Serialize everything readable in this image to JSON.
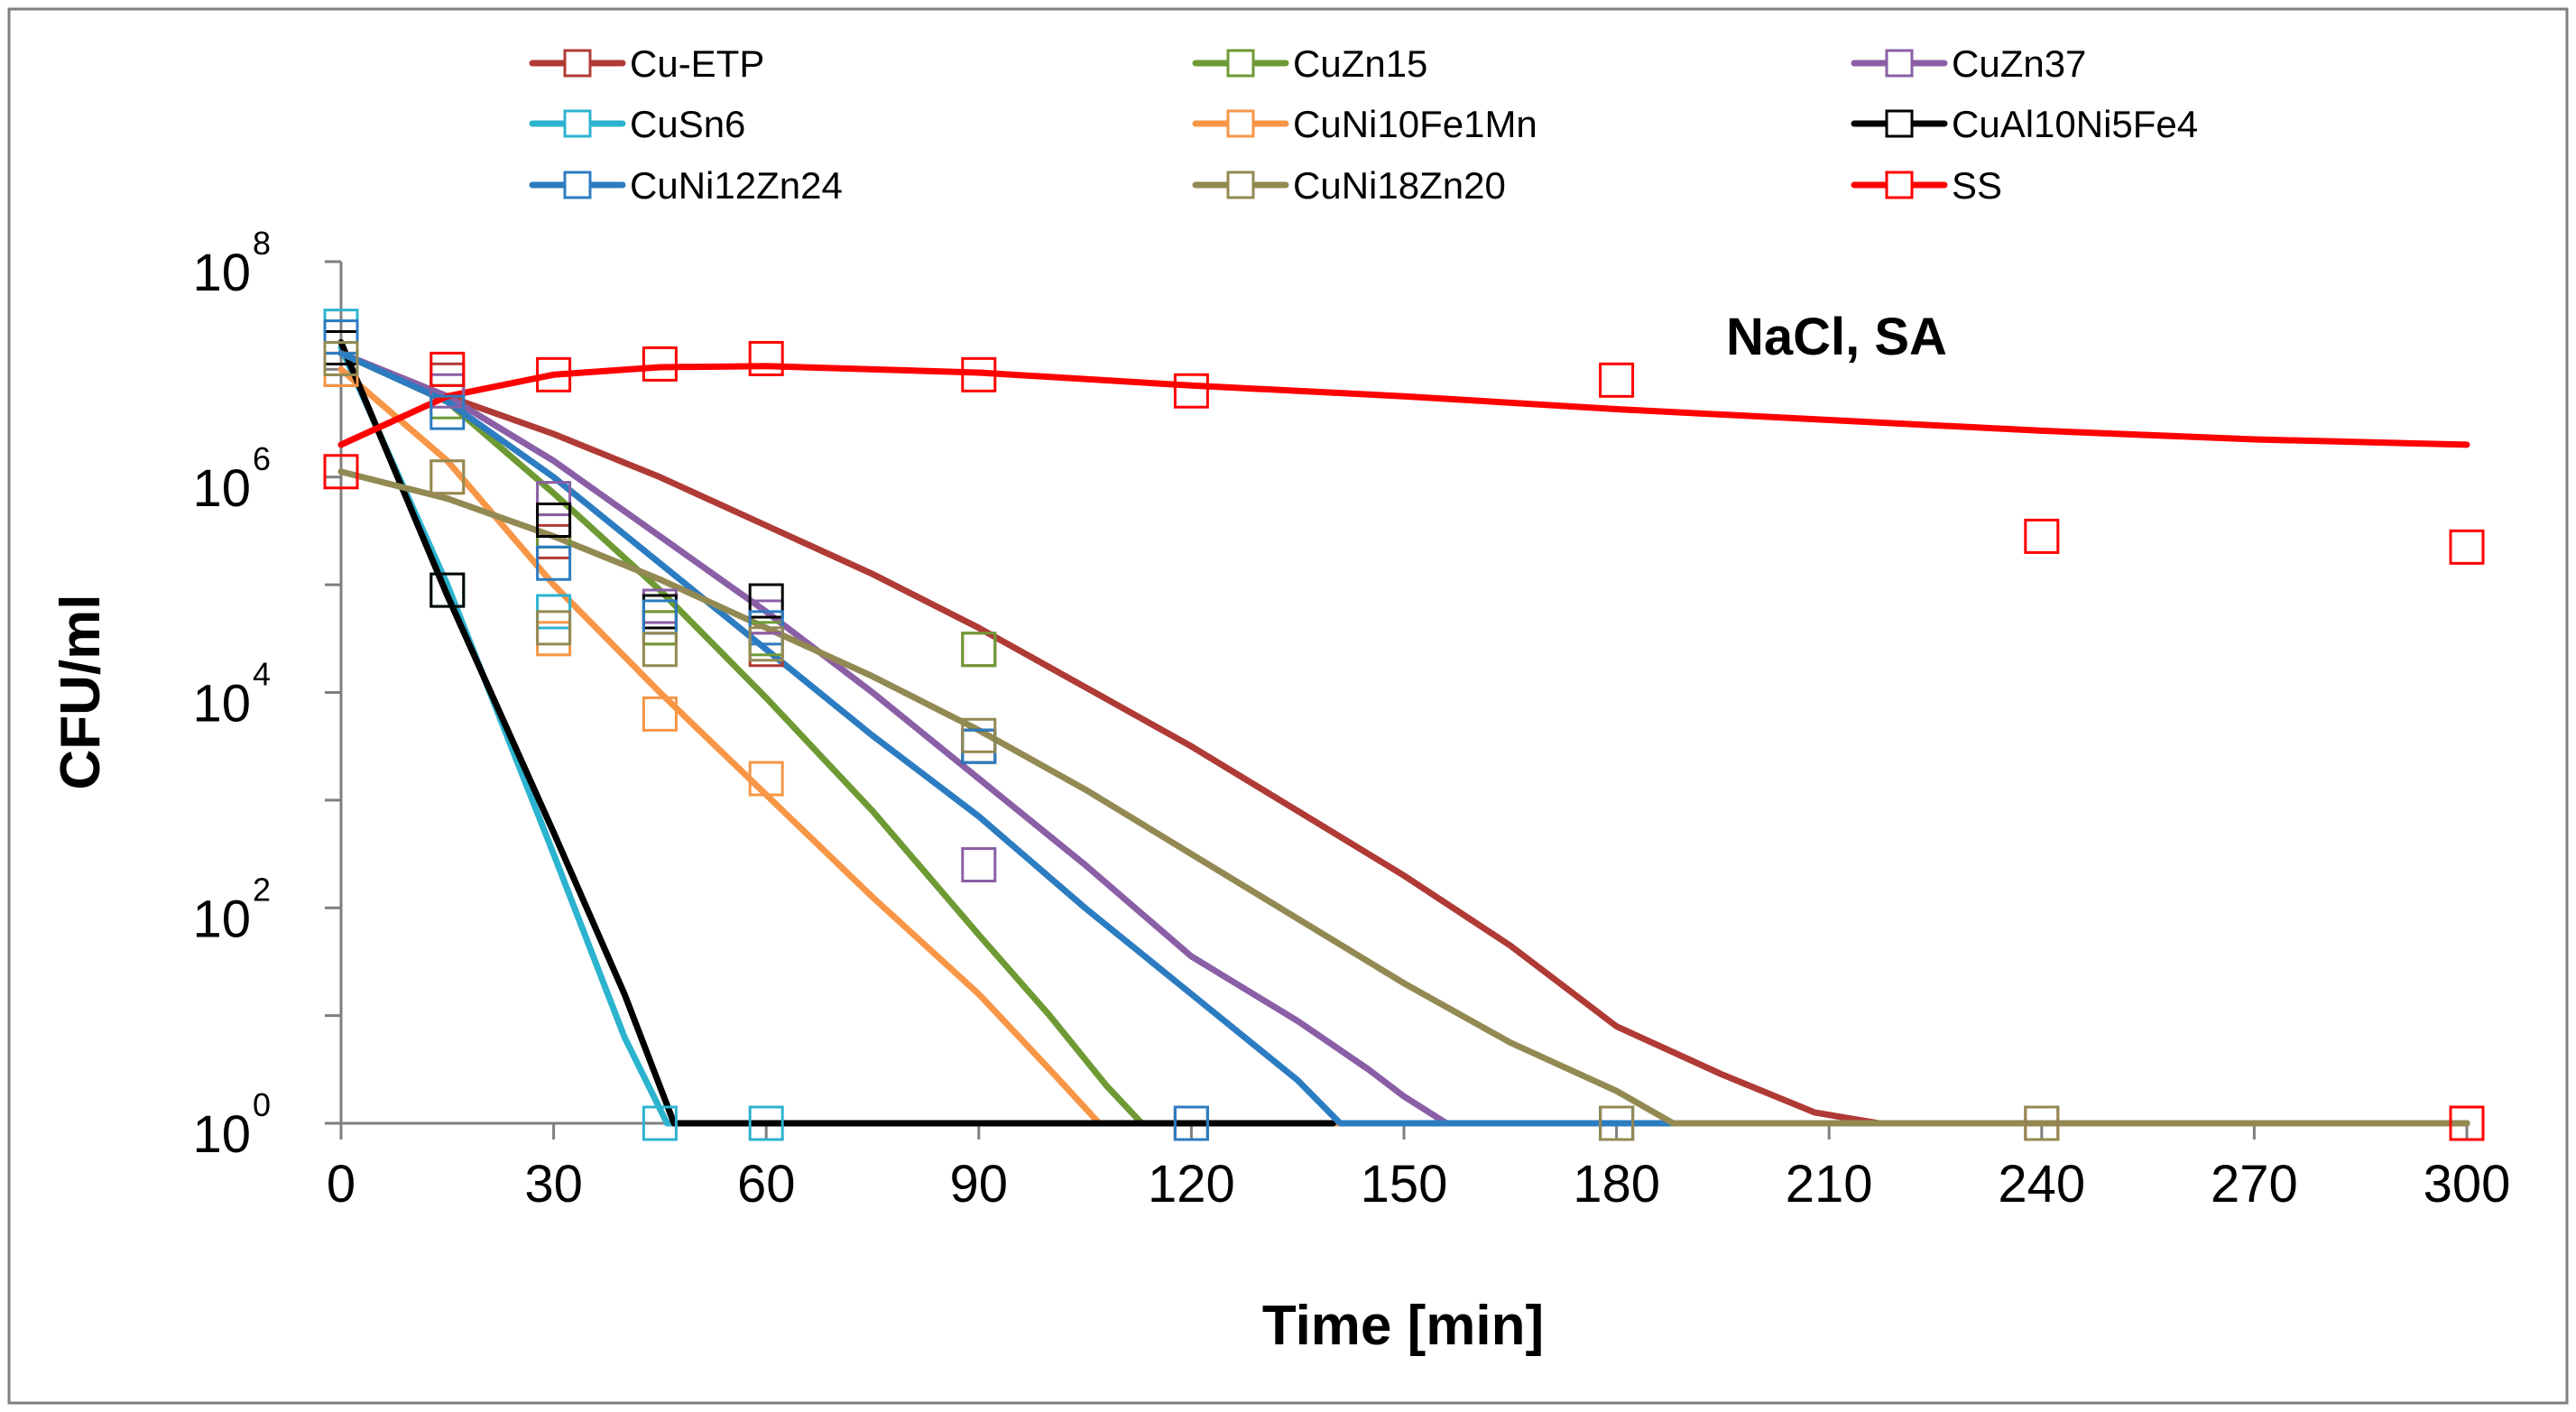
{
  "chart_data": {
    "type": "line",
    "annotation": "NaCl, SA",
    "xlabel": "Time [min]",
    "ylabel": "CFU/ml",
    "y_scale": "log",
    "xlim": [
      0,
      300
    ],
    "ylim_exponent": [
      0,
      8
    ],
    "x_ticks": [
      "0",
      "30",
      "60",
      "90",
      "120",
      "150",
      "180",
      "210",
      "240",
      "270",
      "300"
    ],
    "y_ticks": [
      {
        "base": "10",
        "exp": "0"
      },
      {
        "base": "10",
        "exp": "2"
      },
      {
        "base": "10",
        "exp": "4"
      },
      {
        "base": "10",
        "exp": "6"
      },
      {
        "base": "10",
        "exp": "8"
      }
    ],
    "legend_position": "top",
    "series": [
      {
        "name": "Cu-ETP",
        "color": "#b03a35",
        "fit_log10": [
          [
            0,
            7.15
          ],
          [
            15,
            6.75
          ],
          [
            30,
            6.4
          ],
          [
            45,
            6.0
          ],
          [
            60,
            5.55
          ],
          [
            75,
            5.1
          ],
          [
            90,
            4.6
          ],
          [
            105,
            4.05
          ],
          [
            120,
            3.5
          ],
          [
            135,
            2.9
          ],
          [
            150,
            2.3
          ],
          [
            165,
            1.65
          ],
          [
            180,
            0.9
          ],
          [
            195,
            0.45
          ],
          [
            208,
            0.1
          ],
          [
            217,
            0
          ],
          [
            300,
            0
          ]
        ],
        "points": [
          [
            0,
            7.0
          ],
          [
            15,
            6.9
          ],
          [
            30,
            5.4
          ],
          [
            45,
            4.6
          ],
          [
            60,
            4.4
          ],
          [
            90,
            4.4
          ],
          [
            120,
            0
          ],
          [
            180,
            0
          ],
          [
            240,
            0
          ],
          [
            300,
            0
          ]
        ]
      },
      {
        "name": "CuZn15",
        "color": "#6e9a34",
        "fit_log10": [
          [
            0,
            7.15
          ],
          [
            15,
            6.7
          ],
          [
            30,
            5.85
          ],
          [
            45,
            4.95
          ],
          [
            60,
            3.95
          ],
          [
            75,
            2.9
          ],
          [
            90,
            1.75
          ],
          [
            100,
            1.0
          ],
          [
            108,
            0.35
          ],
          [
            113,
            0
          ],
          [
            300,
            0
          ]
        ],
        "points": [
          [
            0,
            7.3
          ],
          [
            15,
            6.7
          ],
          [
            30,
            5.5
          ],
          [
            45,
            4.6
          ],
          [
            60,
            4.5
          ],
          [
            90,
            4.4
          ],
          [
            120,
            0
          ]
        ]
      },
      {
        "name": "CuZn37",
        "color": "#8a5fa6",
        "fit_log10": [
          [
            0,
            7.15
          ],
          [
            15,
            6.75
          ],
          [
            30,
            6.15
          ],
          [
            45,
            5.45
          ],
          [
            60,
            4.75
          ],
          [
            75,
            4.0
          ],
          [
            90,
            3.2
          ],
          [
            105,
            2.4
          ],
          [
            120,
            1.55
          ],
          [
            135,
            0.95
          ],
          [
            145,
            0.5
          ],
          [
            150,
            0.25
          ],
          [
            156,
            0
          ],
          [
            300,
            0
          ]
        ],
        "points": [
          [
            0,
            7.2
          ],
          [
            15,
            6.8
          ],
          [
            30,
            5.8
          ],
          [
            45,
            4.8
          ],
          [
            60,
            4.7
          ],
          [
            90,
            2.4
          ],
          [
            120,
            0
          ],
          [
            180,
            0
          ]
        ]
      },
      {
        "name": "CuSn6",
        "color": "#2cb3cf",
        "fit_log10": [
          [
            0,
            7.2
          ],
          [
            15,
            5.0
          ],
          [
            30,
            2.5
          ],
          [
            40,
            0.8
          ],
          [
            46,
            0
          ],
          [
            300,
            0
          ]
        ],
        "points": [
          [
            0,
            7.4
          ],
          [
            15,
            4.95
          ],
          [
            30,
            4.75
          ],
          [
            45,
            0
          ],
          [
            60,
            0
          ]
        ]
      },
      {
        "name": "CuNi10Fe1Mn",
        "color": "#f79646",
        "fit_log10": [
          [
            0,
            7.0
          ],
          [
            15,
            6.15
          ],
          [
            30,
            5.0
          ],
          [
            45,
            4.0
          ],
          [
            60,
            3.05
          ],
          [
            75,
            2.1
          ],
          [
            90,
            1.2
          ],
          [
            100,
            0.5
          ],
          [
            107,
            0
          ],
          [
            300,
            0
          ]
        ],
        "points": [
          [
            0,
            7.0
          ],
          [
            15,
            6.0
          ],
          [
            30,
            4.5
          ],
          [
            45,
            3.8
          ],
          [
            60,
            3.2
          ]
        ]
      },
      {
        "name": "CuAl10Ni5Fe4",
        "color": "#000000",
        "fit_log10": [
          [
            0,
            7.25
          ],
          [
            15,
            4.9
          ],
          [
            30,
            2.7
          ],
          [
            40,
            1.2
          ],
          [
            47,
            0
          ],
          [
            140,
            0
          ]
        ],
        "points": [
          [
            0,
            7.2
          ],
          [
            15,
            4.95
          ],
          [
            30,
            5.6
          ],
          [
            45,
            4.75
          ],
          [
            60,
            4.85
          ],
          [
            90,
            3.5
          ],
          [
            300,
            0
          ]
        ]
      },
      {
        "name": "CuNi12Zn24",
        "color": "#2c7cc1",
        "fit_log10": [
          [
            0,
            7.15
          ],
          [
            15,
            6.7
          ],
          [
            30,
            6.0
          ],
          [
            45,
            5.2
          ],
          [
            60,
            4.4
          ],
          [
            75,
            3.6
          ],
          [
            90,
            2.85
          ],
          [
            105,
            2.0
          ],
          [
            120,
            1.2
          ],
          [
            135,
            0.4
          ],
          [
            141,
            0
          ],
          [
            300,
            0
          ]
        ],
        "points": [
          [
            0,
            7.3
          ],
          [
            15,
            6.6
          ],
          [
            30,
            5.2
          ],
          [
            45,
            4.7
          ],
          [
            60,
            4.6
          ],
          [
            90,
            3.5
          ],
          [
            120,
            0
          ],
          [
            180,
            0
          ]
        ]
      },
      {
        "name": "CuNi18Zn20",
        "color": "#938953",
        "fit_log10": [
          [
            0,
            6.05
          ],
          [
            15,
            5.8
          ],
          [
            30,
            5.45
          ],
          [
            45,
            5.05
          ],
          [
            60,
            4.6
          ],
          [
            75,
            4.15
          ],
          [
            90,
            3.65
          ],
          [
            105,
            3.1
          ],
          [
            120,
            2.5
          ],
          [
            135,
            1.9
          ],
          [
            150,
            1.3
          ],
          [
            165,
            0.75
          ],
          [
            180,
            0.3
          ],
          [
            188,
            0
          ],
          [
            300,
            0
          ]
        ],
        "points": [
          [
            0,
            7.1
          ],
          [
            15,
            6.0
          ],
          [
            30,
            4.6
          ],
          [
            45,
            4.4
          ],
          [
            60,
            4.45
          ],
          [
            90,
            3.6
          ],
          [
            180,
            0
          ],
          [
            240,
            0
          ],
          [
            300,
            0
          ]
        ]
      },
      {
        "name": "SS",
        "color": "#ff0000",
        "fit_log10": [
          [
            0,
            6.3
          ],
          [
            15,
            6.75
          ],
          [
            30,
            6.95
          ],
          [
            45,
            7.02
          ],
          [
            60,
            7.03
          ],
          [
            90,
            6.97
          ],
          [
            120,
            6.85
          ],
          [
            150,
            6.75
          ],
          [
            180,
            6.63
          ],
          [
            210,
            6.53
          ],
          [
            240,
            6.43
          ],
          [
            270,
            6.35
          ],
          [
            300,
            6.3
          ]
        ],
        "points": [
          [
            0,
            6.05
          ],
          [
            15,
            7.0
          ],
          [
            30,
            6.95
          ],
          [
            45,
            7.05
          ],
          [
            60,
            7.1
          ],
          [
            90,
            6.95
          ],
          [
            120,
            6.8
          ],
          [
            180,
            6.9
          ],
          [
            240,
            5.45
          ],
          [
            300,
            5.35
          ],
          [
            300,
            0
          ]
        ]
      }
    ]
  }
}
